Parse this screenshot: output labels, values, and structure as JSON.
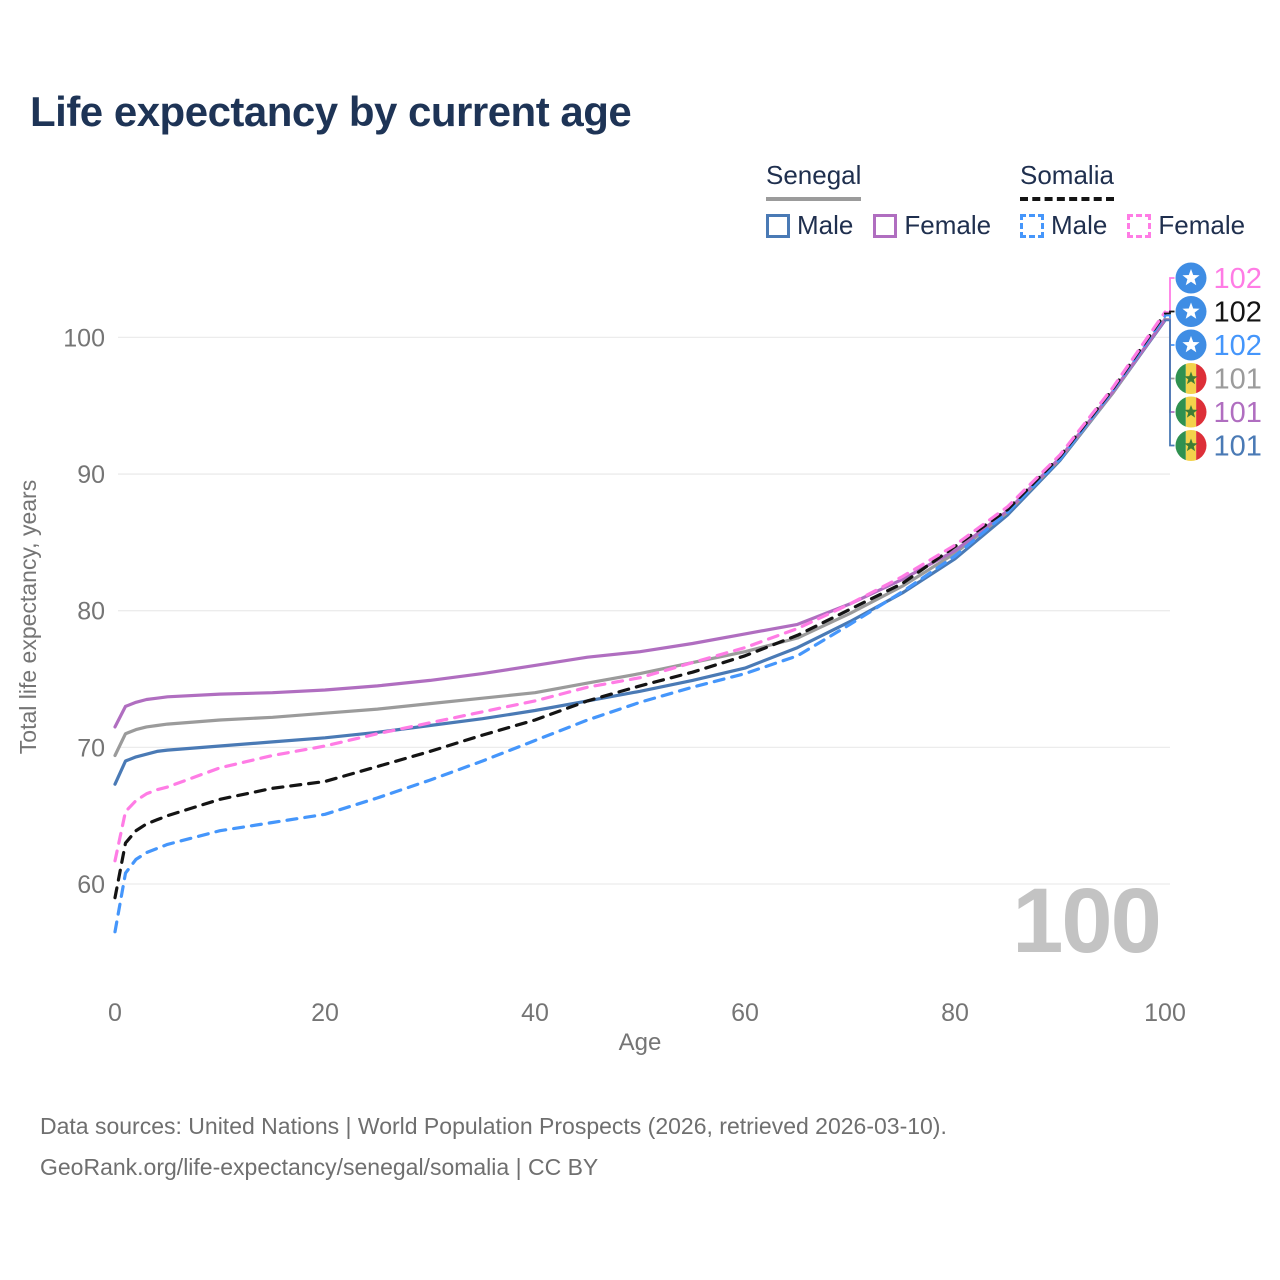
{
  "title": "Life expectancy by current age",
  "title_color": "#1e3456",
  "legend_text_color": "#1f2f4e",
  "legend": {
    "groups": [
      {
        "id": "senegal",
        "label": "Senegal",
        "line_style": "solid",
        "line_color": "#9b9b9b",
        "items": [
          {
            "label": "Male",
            "color": "#4a7ab5",
            "style": "solid"
          },
          {
            "label": "Female",
            "color": "#b06ec0",
            "style": "solid"
          }
        ]
      },
      {
        "id": "somalia",
        "label": "Somalia",
        "line_style": "dashed",
        "line_color": "#141414",
        "items": [
          {
            "label": "Male",
            "color": "#4596fb",
            "style": "dashed"
          },
          {
            "label": "Female",
            "color": "#ff7ce5",
            "style": "dashed"
          }
        ]
      }
    ]
  },
  "chart_data": {
    "type": "line",
    "xlabel": "Age",
    "ylabel": "Total life expectancy, years",
    "xticks": [
      0,
      20,
      40,
      60,
      80,
      100
    ],
    "yticks": [
      60,
      70,
      80,
      90,
      100
    ],
    "xlim": [
      0,
      100
    ],
    "ylim": [
      56,
      104
    ],
    "grid": "horizontal-only",
    "grid_color": "#ececec",
    "axis_text_color": "#757575",
    "watermark": "100",
    "watermark_color": "#c3c3c3",
    "series": [
      {
        "id": "senegal-male",
        "name": "Senegal Male",
        "country": "Senegal",
        "sex": "Male",
        "color": "#4a7ab5",
        "dash": false,
        "points": [
          [
            0,
            67.3
          ],
          [
            1,
            69.0
          ],
          [
            2,
            69.3
          ],
          [
            3,
            69.5
          ],
          [
            4,
            69.7
          ],
          [
            5,
            69.8
          ],
          [
            10,
            70.1
          ],
          [
            15,
            70.4
          ],
          [
            20,
            70.7
          ],
          [
            25,
            71.1
          ],
          [
            30,
            71.6
          ],
          [
            35,
            72.1
          ],
          [
            40,
            72.7
          ],
          [
            45,
            73.4
          ],
          [
            50,
            74.1
          ],
          [
            55,
            74.9
          ],
          [
            60,
            75.8
          ],
          [
            65,
            77.3
          ],
          [
            70,
            79.2
          ],
          [
            75,
            81.3
          ],
          [
            80,
            83.8
          ],
          [
            85,
            87.0
          ],
          [
            90,
            91.0
          ],
          [
            95,
            95.9
          ],
          [
            100,
            101.25
          ]
        ]
      },
      {
        "id": "senegal-both",
        "name": "Senegal Both sexes",
        "country": "Senegal",
        "sex": "Both",
        "color": "#9b9b9b",
        "dash": false,
        "points": [
          [
            0,
            69.4
          ],
          [
            1,
            71.0
          ],
          [
            2,
            71.3
          ],
          [
            3,
            71.5
          ],
          [
            4,
            71.6
          ],
          [
            5,
            71.7
          ],
          [
            10,
            72.0
          ],
          [
            15,
            72.2
          ],
          [
            20,
            72.5
          ],
          [
            25,
            72.8
          ],
          [
            30,
            73.2
          ],
          [
            35,
            73.6
          ],
          [
            40,
            74.0
          ],
          [
            45,
            74.7
          ],
          [
            50,
            75.4
          ],
          [
            55,
            76.2
          ],
          [
            60,
            77.0
          ],
          [
            65,
            78.0
          ],
          [
            70,
            79.8
          ],
          [
            75,
            81.8
          ],
          [
            80,
            84.2
          ],
          [
            85,
            87.2
          ],
          [
            90,
            91.1
          ],
          [
            95,
            95.9
          ],
          [
            100,
            101.35
          ]
        ]
      },
      {
        "id": "senegal-female",
        "name": "Senegal Female",
        "country": "Senegal",
        "sex": "Female",
        "color": "#b06ec0",
        "dash": false,
        "points": [
          [
            0,
            71.5
          ],
          [
            1,
            73.0
          ],
          [
            2,
            73.3
          ],
          [
            3,
            73.5
          ],
          [
            4,
            73.6
          ],
          [
            5,
            73.7
          ],
          [
            10,
            73.9
          ],
          [
            15,
            74.0
          ],
          [
            20,
            74.2
          ],
          [
            25,
            74.5
          ],
          [
            30,
            74.9
          ],
          [
            35,
            75.4
          ],
          [
            40,
            76.0
          ],
          [
            45,
            76.6
          ],
          [
            50,
            77.0
          ],
          [
            55,
            77.6
          ],
          [
            60,
            78.3
          ],
          [
            65,
            79.0
          ],
          [
            70,
            80.5
          ],
          [
            75,
            82.3
          ],
          [
            80,
            84.4
          ],
          [
            85,
            87.3
          ],
          [
            90,
            91.2
          ],
          [
            95,
            96.0
          ],
          [
            100,
            101.3
          ]
        ]
      },
      {
        "id": "somalia-male",
        "name": "Somalia Male",
        "country": "Somalia",
        "sex": "Male",
        "color": "#4596fb",
        "dash": true,
        "points": [
          [
            0,
            56.5
          ],
          [
            1,
            60.8
          ],
          [
            2,
            61.8
          ],
          [
            3,
            62.3
          ],
          [
            4,
            62.6
          ],
          [
            5,
            62.9
          ],
          [
            10,
            63.9
          ],
          [
            15,
            64.5
          ],
          [
            20,
            65.1
          ],
          [
            25,
            66.3
          ],
          [
            30,
            67.6
          ],
          [
            35,
            69.0
          ],
          [
            40,
            70.5
          ],
          [
            45,
            72.0
          ],
          [
            50,
            73.3
          ],
          [
            55,
            74.4
          ],
          [
            60,
            75.4
          ],
          [
            65,
            76.7
          ],
          [
            70,
            79.0
          ],
          [
            75,
            81.4
          ],
          [
            80,
            84.0
          ],
          [
            85,
            87.2
          ],
          [
            90,
            91.1
          ],
          [
            95,
            96.1
          ],
          [
            100,
            101.6
          ]
        ]
      },
      {
        "id": "somalia-both",
        "name": "Somalia Both sexes",
        "country": "Somalia",
        "sex": "Both",
        "color": "#141414",
        "dash": true,
        "points": [
          [
            0,
            59.0
          ],
          [
            1,
            63.0
          ],
          [
            2,
            63.9
          ],
          [
            3,
            64.4
          ],
          [
            4,
            64.7
          ],
          [
            5,
            65.0
          ],
          [
            10,
            66.2
          ],
          [
            15,
            67.0
          ],
          [
            20,
            67.5
          ],
          [
            25,
            68.6
          ],
          [
            30,
            69.7
          ],
          [
            35,
            70.9
          ],
          [
            40,
            72.0
          ],
          [
            45,
            73.4
          ],
          [
            50,
            74.5
          ],
          [
            55,
            75.5
          ],
          [
            60,
            76.7
          ],
          [
            65,
            78.2
          ],
          [
            70,
            80.1
          ],
          [
            75,
            82.0
          ],
          [
            80,
            84.7
          ],
          [
            85,
            87.4
          ],
          [
            90,
            91.3
          ],
          [
            95,
            96.2
          ],
          [
            100,
            101.75
          ]
        ]
      },
      {
        "id": "somalia-female",
        "name": "Somalia Female",
        "country": "Somalia",
        "sex": "Female",
        "color": "#ff7ce5",
        "dash": true,
        "points": [
          [
            0,
            61.7
          ],
          [
            1,
            65.3
          ],
          [
            2,
            66.1
          ],
          [
            3,
            66.6
          ],
          [
            4,
            66.9
          ],
          [
            5,
            67.1
          ],
          [
            10,
            68.5
          ],
          [
            15,
            69.4
          ],
          [
            20,
            70.1
          ],
          [
            25,
            71.0
          ],
          [
            30,
            71.8
          ],
          [
            35,
            72.6
          ],
          [
            40,
            73.4
          ],
          [
            45,
            74.4
          ],
          [
            50,
            75.1
          ],
          [
            55,
            76.2
          ],
          [
            60,
            77.3
          ],
          [
            65,
            78.7
          ],
          [
            70,
            80.5
          ],
          [
            75,
            82.5
          ],
          [
            80,
            84.8
          ],
          [
            85,
            87.6
          ],
          [
            90,
            91.4
          ],
          [
            95,
            96.3
          ],
          [
            100,
            101.85
          ]
        ]
      }
    ],
    "end_labels": [
      {
        "value": "102",
        "color": "#ff7ce5",
        "flag": "somalia",
        "series_id": "somalia-female"
      },
      {
        "value": "102",
        "color": "#141414",
        "flag": "somalia",
        "series_id": "somalia-both"
      },
      {
        "value": "102",
        "color": "#4596fb",
        "flag": "somalia",
        "series_id": "somalia-male"
      },
      {
        "value": "101",
        "color": "#9b9b9b",
        "flag": "senegal",
        "series_id": "senegal-both"
      },
      {
        "value": "101",
        "color": "#b06ec0",
        "flag": "senegal",
        "series_id": "senegal-female"
      },
      {
        "value": "101",
        "color": "#4a7ab5",
        "flag": "senegal",
        "series_id": "senegal-male"
      }
    ],
    "flags": {
      "somalia": {
        "bg": "#3f8de4",
        "star": "#ffffff"
      },
      "senegal": {
        "green": "#2f9150",
        "yellow": "#f3d24b",
        "red": "#dd2f38",
        "star": "#3f7d35"
      }
    }
  },
  "footer": {
    "line1": "Data sources: United Nations | World Population Prospects (2026, retrieved 2026-03-10).",
    "line2": "GeoRank.org/life-expectancy/senegal/somalia | CC BY"
  }
}
